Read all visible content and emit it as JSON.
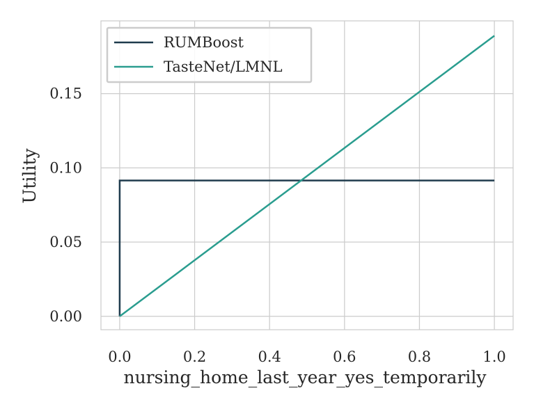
{
  "chart_data": {
    "type": "line",
    "title": "",
    "xlabel": "nursing_home_last_year_yes_temporarily",
    "ylabel": "Utility",
    "xlim": [
      -0.05,
      1.05
    ],
    "ylim": [
      -0.009,
      0.199
    ],
    "x_ticks": [
      0.0,
      0.2,
      0.4,
      0.6,
      0.8,
      1.0
    ],
    "x_tick_labels": [
      "0.0",
      "0.2",
      "0.4",
      "0.6",
      "0.8",
      "1.0"
    ],
    "y_ticks": [
      0.0,
      0.05,
      0.1,
      0.15
    ],
    "y_tick_labels": [
      "0.00",
      "0.05",
      "0.10",
      "0.15"
    ],
    "grid": true,
    "legend_position": "top-left",
    "series": [
      {
        "name": "RUMBoost",
        "color": "#1f3b4d",
        "x": [
          0.0,
          0.0,
          1.0
        ],
        "y": [
          0.0,
          0.0915,
          0.0915
        ]
      },
      {
        "name": "TasteNet/LMNL",
        "color": "#2a9d8f",
        "x": [
          0.0,
          1.0
        ],
        "y": [
          0.0,
          0.189
        ]
      }
    ]
  }
}
